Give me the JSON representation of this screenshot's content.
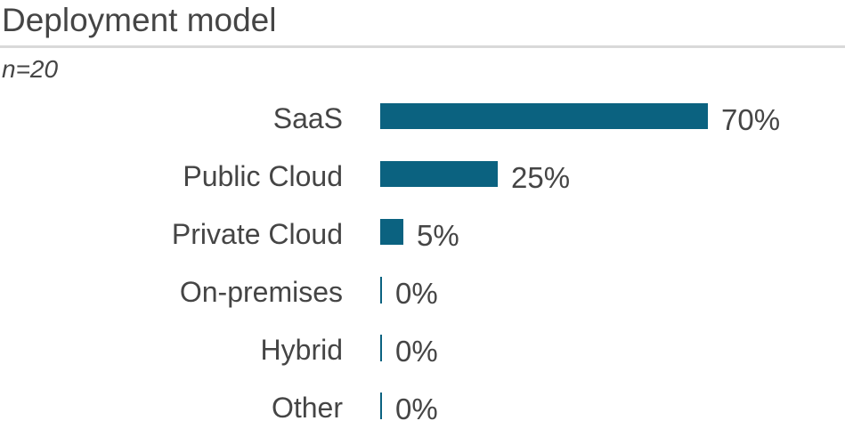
{
  "title": "Deployment model",
  "sample_note": "n=20",
  "colors": {
    "bar": "#0b6280",
    "text": "#454545",
    "divider": "#d9d9d9"
  },
  "chart_data": {
    "type": "bar",
    "orientation": "horizontal",
    "title": "Deployment model",
    "subtitle": "n=20",
    "categories": [
      "SaaS",
      "Public Cloud",
      "Private Cloud",
      "On-premises",
      "Hybrid",
      "Other"
    ],
    "values": [
      70,
      25,
      5,
      0,
      0,
      0
    ],
    "value_labels": [
      "70%",
      "25%",
      "5%",
      "0%",
      "0%",
      "0%"
    ],
    "xlim": [
      0,
      100
    ],
    "grid": false,
    "legend": false,
    "zero_shown_as": "tick"
  }
}
